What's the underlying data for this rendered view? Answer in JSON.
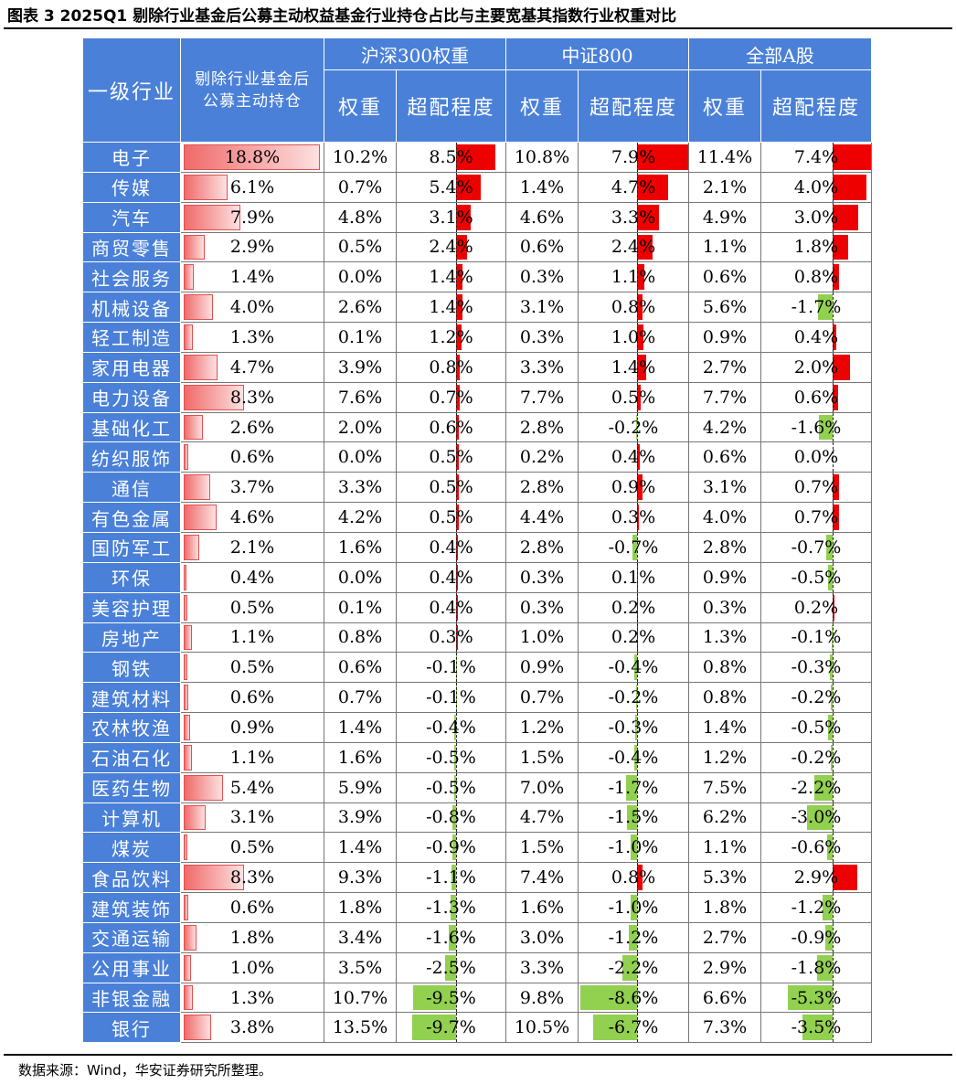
{
  "title": "图表 3 2025Q1 剔除行业基金后公募主动权益基金行业持仓占比与主要宽基其指数行业权重对比",
  "source": "数据来源：Wind，华安证券研究所整理。",
  "colors": {
    "header": "#4a80d8",
    "positive": "#ee0000",
    "negative": "#92d050",
    "active_bar": "#f06a6a"
  },
  "headers": {
    "industry": "一级行业",
    "active": "剔除行业基金后公募主动持仓",
    "groups": [
      "沪深300权重",
      "中证800",
      "全部A股"
    ],
    "weight": "权重",
    "over": "超配程度"
  },
  "chart_data": {
    "type": "table",
    "columns": [
      "一级行业",
      "剔除行业基金后公募主动持仓",
      "沪深300权重",
      "沪深300超配程度",
      "中证800权重",
      "中证800超配程度",
      "全部A股权重",
      "全部A股超配程度"
    ],
    "unit": "%",
    "rows": [
      {
        "name": "电子",
        "active": 18.8,
        "hs300_w": 10.2,
        "hs300_o": 8.5,
        "zz800_w": 10.8,
        "zz800_o": 7.9,
        "all_w": 11.4,
        "all_o": 7.4
      },
      {
        "name": "传媒",
        "active": 6.1,
        "hs300_w": 0.7,
        "hs300_o": 5.4,
        "zz800_w": 1.4,
        "zz800_o": 4.7,
        "all_w": 2.1,
        "all_o": 4.0
      },
      {
        "name": "汽车",
        "active": 7.9,
        "hs300_w": 4.8,
        "hs300_o": 3.1,
        "zz800_w": 4.6,
        "zz800_o": 3.3,
        "all_w": 4.9,
        "all_o": 3.0
      },
      {
        "name": "商贸零售",
        "active": 2.9,
        "hs300_w": 0.5,
        "hs300_o": 2.4,
        "zz800_w": 0.6,
        "zz800_o": 2.4,
        "all_w": 1.1,
        "all_o": 1.8
      },
      {
        "name": "社会服务",
        "active": 1.4,
        "hs300_w": 0.0,
        "hs300_o": 1.4,
        "zz800_w": 0.3,
        "zz800_o": 1.1,
        "all_w": 0.6,
        "all_o": 0.8
      },
      {
        "name": "机械设备",
        "active": 4.0,
        "hs300_w": 2.6,
        "hs300_o": 1.4,
        "zz800_w": 3.1,
        "zz800_o": 0.8,
        "all_w": 5.6,
        "all_o": -1.7
      },
      {
        "name": "轻工制造",
        "active": 1.3,
        "hs300_w": 0.1,
        "hs300_o": 1.2,
        "zz800_w": 0.3,
        "zz800_o": 1.0,
        "all_w": 0.9,
        "all_o": 0.4
      },
      {
        "name": "家用电器",
        "active": 4.7,
        "hs300_w": 3.9,
        "hs300_o": 0.8,
        "zz800_w": 3.3,
        "zz800_o": 1.4,
        "all_w": 2.7,
        "all_o": 2.0
      },
      {
        "name": "电力设备",
        "active": 8.3,
        "hs300_w": 7.6,
        "hs300_o": 0.7,
        "zz800_w": 7.7,
        "zz800_o": 0.5,
        "all_w": 7.7,
        "all_o": 0.6
      },
      {
        "name": "基础化工",
        "active": 2.6,
        "hs300_w": 2.0,
        "hs300_o": 0.6,
        "zz800_w": 2.8,
        "zz800_o": -0.2,
        "all_w": 4.2,
        "all_o": -1.6
      },
      {
        "name": "纺织服饰",
        "active": 0.6,
        "hs300_w": 0.0,
        "hs300_o": 0.5,
        "zz800_w": 0.2,
        "zz800_o": 0.4,
        "all_w": 0.6,
        "all_o": 0.0
      },
      {
        "name": "通信",
        "active": 3.7,
        "hs300_w": 3.3,
        "hs300_o": 0.5,
        "zz800_w": 2.8,
        "zz800_o": 0.9,
        "all_w": 3.1,
        "all_o": 0.7
      },
      {
        "name": "有色金属",
        "active": 4.6,
        "hs300_w": 4.2,
        "hs300_o": 0.5,
        "zz800_w": 4.4,
        "zz800_o": 0.3,
        "all_w": 4.0,
        "all_o": 0.7
      },
      {
        "name": "国防军工",
        "active": 2.1,
        "hs300_w": 1.6,
        "hs300_o": 0.4,
        "zz800_w": 2.8,
        "zz800_o": -0.7,
        "all_w": 2.8,
        "all_o": -0.7
      },
      {
        "name": "环保",
        "active": 0.4,
        "hs300_w": 0.0,
        "hs300_o": 0.4,
        "zz800_w": 0.3,
        "zz800_o": 0.1,
        "all_w": 0.9,
        "all_o": -0.5
      },
      {
        "name": "美容护理",
        "active": 0.5,
        "hs300_w": 0.1,
        "hs300_o": 0.4,
        "zz800_w": 0.3,
        "zz800_o": 0.2,
        "all_w": 0.3,
        "all_o": 0.2
      },
      {
        "name": "房地产",
        "active": 1.1,
        "hs300_w": 0.8,
        "hs300_o": 0.3,
        "zz800_w": 1.0,
        "zz800_o": 0.2,
        "all_w": 1.3,
        "all_o": -0.1
      },
      {
        "name": "钢铁",
        "active": 0.5,
        "hs300_w": 0.6,
        "hs300_o": -0.1,
        "zz800_w": 0.9,
        "zz800_o": -0.4,
        "all_w": 0.8,
        "all_o": -0.3
      },
      {
        "name": "建筑材料",
        "active": 0.6,
        "hs300_w": 0.7,
        "hs300_o": -0.1,
        "zz800_w": 0.7,
        "zz800_o": -0.2,
        "all_w": 0.8,
        "all_o": -0.2
      },
      {
        "name": "农林牧渔",
        "active": 0.9,
        "hs300_w": 1.4,
        "hs300_o": -0.4,
        "zz800_w": 1.2,
        "zz800_o": -0.3,
        "all_w": 1.4,
        "all_o": -0.5
      },
      {
        "name": "石油石化",
        "active": 1.1,
        "hs300_w": 1.6,
        "hs300_o": -0.5,
        "zz800_w": 1.5,
        "zz800_o": -0.4,
        "all_w": 1.2,
        "all_o": -0.2
      },
      {
        "name": "医药生物",
        "active": 5.4,
        "hs300_w": 5.9,
        "hs300_o": -0.5,
        "zz800_w": 7.0,
        "zz800_o": -1.7,
        "all_w": 7.5,
        "all_o": -2.2
      },
      {
        "name": "计算机",
        "active": 3.1,
        "hs300_w": 3.9,
        "hs300_o": -0.8,
        "zz800_w": 4.7,
        "zz800_o": -1.5,
        "all_w": 6.2,
        "all_o": -3.0
      },
      {
        "name": "煤炭",
        "active": 0.5,
        "hs300_w": 1.4,
        "hs300_o": -0.9,
        "zz800_w": 1.5,
        "zz800_o": -1.0,
        "all_w": 1.1,
        "all_o": -0.6
      },
      {
        "name": "食品饮料",
        "active": 8.3,
        "hs300_w": 9.3,
        "hs300_o": -1.1,
        "zz800_w": 7.4,
        "zz800_o": 0.8,
        "all_w": 5.3,
        "all_o": 2.9
      },
      {
        "name": "建筑装饰",
        "active": 0.6,
        "hs300_w": 1.8,
        "hs300_o": -1.3,
        "zz800_w": 1.6,
        "zz800_o": -1.0,
        "all_w": 1.8,
        "all_o": -1.2
      },
      {
        "name": "交通运输",
        "active": 1.8,
        "hs300_w": 3.4,
        "hs300_o": -1.6,
        "zz800_w": 3.0,
        "zz800_o": -1.2,
        "all_w": 2.7,
        "all_o": -0.9
      },
      {
        "name": "公用事业",
        "active": 1.0,
        "hs300_w": 3.5,
        "hs300_o": -2.5,
        "zz800_w": 3.3,
        "zz800_o": -2.2,
        "all_w": 2.9,
        "all_o": -1.8
      },
      {
        "name": "非银金融",
        "active": 1.3,
        "hs300_w": 10.7,
        "hs300_o": -9.5,
        "zz800_w": 9.8,
        "zz800_o": -8.6,
        "all_w": 6.6,
        "all_o": -5.3
      },
      {
        "name": "银行",
        "active": 3.8,
        "hs300_w": 13.5,
        "hs300_o": -9.7,
        "zz800_w": 10.5,
        "zz800_o": -6.7,
        "all_w": 7.3,
        "all_o": -3.5
      }
    ]
  }
}
